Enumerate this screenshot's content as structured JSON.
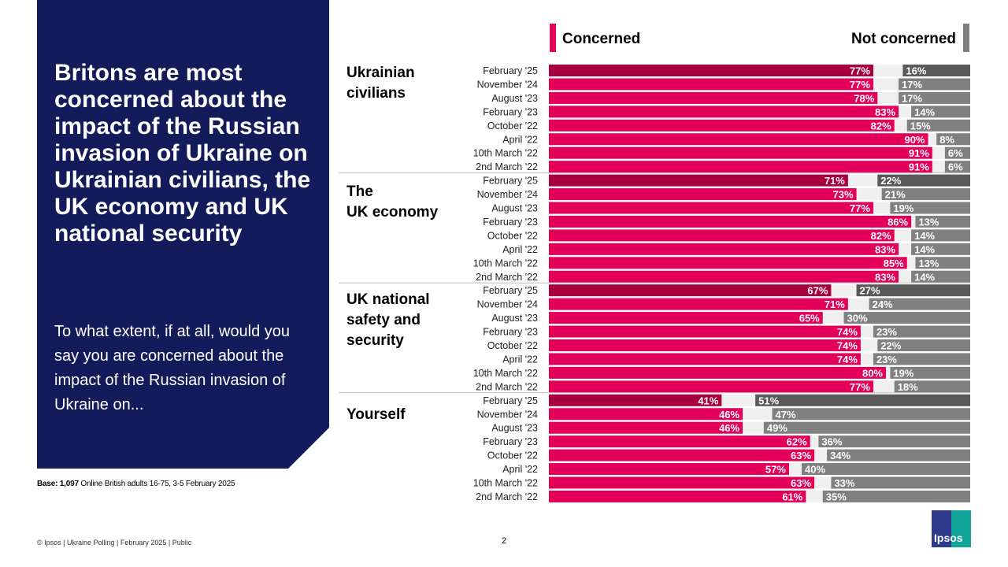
{
  "title": "Britons are most concerned about the impact of the Russian invasion of Ukraine on Ukrainian civilians, the UK economy and UK national security",
  "question": "To what extent, if at all, would you say you are concerned about the impact of the Russian invasion of Ukraine on...",
  "base": {
    "bold": "Base: 1,097",
    "text": " Online British adults 16-75, 3-5 February 2025"
  },
  "footer": "© Ipsos | Ukraine Polling | February 2025 | Public",
  "page_number": "2",
  "logo_text": "Ipsos",
  "colors": {
    "concerned": "#e4005a",
    "concerned_latest": "#a8003f",
    "not_concerned": "#808080",
    "not_concerned_latest": "#595959",
    "gap": "#efefef",
    "panel": "#131b5a"
  },
  "chart_data": {
    "type": "bar",
    "orientation": "horizontal-stacked",
    "legend": [
      {
        "name": "Concerned",
        "position": "top-left"
      },
      {
        "name": "Not concerned",
        "position": "top-right"
      }
    ],
    "xlim": [
      0,
      100
    ],
    "categories": [
      "February '25",
      "November '24",
      "August '23",
      "February '23",
      "October '22",
      "April '22",
      "10th March '22",
      "2nd March '22"
    ],
    "groups": [
      {
        "label": "Ukrainian civilians",
        "concerned": [
          77,
          77,
          78,
          83,
          82,
          90,
          91,
          91
        ],
        "not_concerned": [
          16,
          17,
          17,
          14,
          15,
          8,
          6,
          6
        ]
      },
      {
        "label": "The UK economy",
        "concerned": [
          71,
          73,
          77,
          86,
          82,
          83,
          85,
          83
        ],
        "not_concerned": [
          22,
          21,
          19,
          13,
          14,
          14,
          13,
          14
        ]
      },
      {
        "label": "UK national safety and security",
        "concerned": [
          67,
          71,
          65,
          74,
          74,
          74,
          80,
          77
        ],
        "not_concerned": [
          27,
          24,
          30,
          23,
          22,
          23,
          19,
          18
        ]
      },
      {
        "label": "Yourself",
        "concerned": [
          41,
          46,
          46,
          62,
          63,
          57,
          63,
          61
        ],
        "not_concerned": [
          51,
          47,
          49,
          36,
          34,
          40,
          33,
          35
        ]
      }
    ]
  }
}
